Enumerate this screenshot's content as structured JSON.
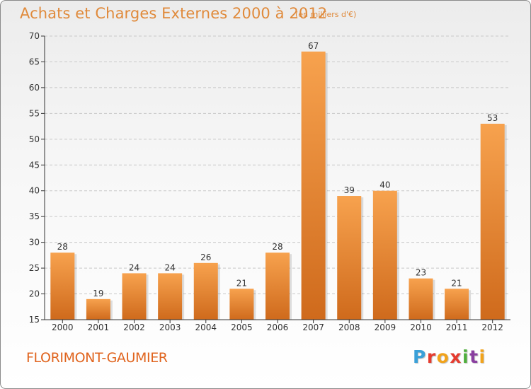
{
  "header": {
    "title": "Achats et Charges Externes 2000 à 2012",
    "subtitle": "(en milliers d'€)"
  },
  "footer": {
    "commune": "FLORIMONT-GAUMIER",
    "logo_letters": [
      "P",
      "r",
      "o",
      "x",
      "i",
      "t",
      "i"
    ],
    "logo_colors": [
      "#3aa0d8",
      "#e53b2f",
      "#f1a31c",
      "#e53b2f",
      "#4fae3c",
      "#8a3fa0",
      "#f1a31c"
    ]
  },
  "colors": {
    "bar_light": "#f7a24e",
    "bar_dark": "#cf6a1c",
    "title": "#e08a3b",
    "commune": "#e0641e",
    "axis": "#333333",
    "grid": "#c8c8c8"
  },
  "chart_data": {
    "type": "bar",
    "categories": [
      "2000",
      "2001",
      "2002",
      "2003",
      "2004",
      "2005",
      "2006",
      "2007",
      "2008",
      "2009",
      "2010",
      "2011",
      "2012"
    ],
    "values": [
      28,
      19,
      24,
      24,
      26,
      21,
      28,
      67,
      39,
      40,
      23,
      21,
      53
    ],
    "data_labels": [
      "28",
      "19",
      "24",
      "24",
      "26",
      "21",
      "28",
      "67",
      "39",
      "40",
      "23",
      "21",
      "53"
    ],
    "yticks": [
      "15",
      "20",
      "25",
      "30",
      "35",
      "40",
      "45",
      "50",
      "55",
      "60",
      "65",
      "70"
    ],
    "ylim": [
      15,
      70
    ],
    "grid": true,
    "legend": "none"
  }
}
